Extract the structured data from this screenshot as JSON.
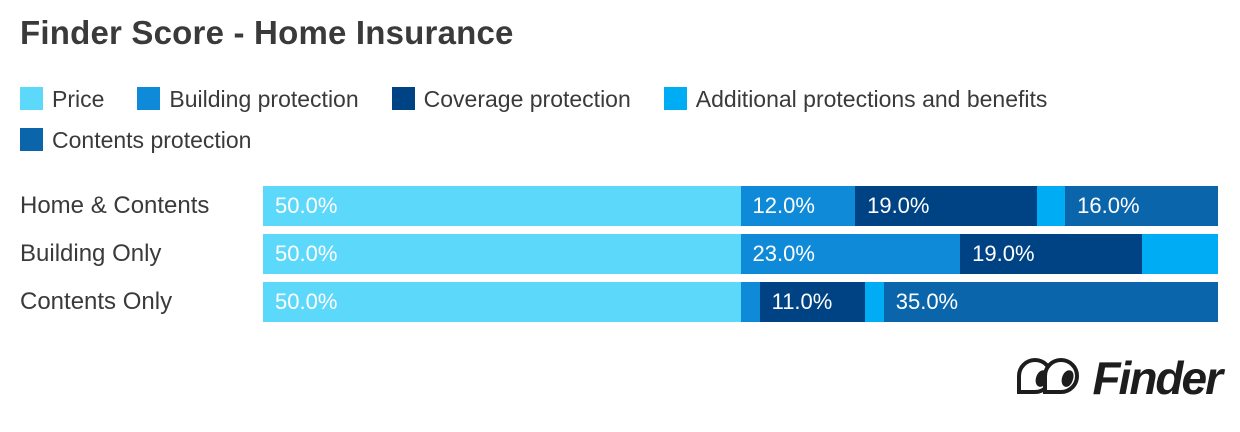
{
  "title": "Finder Score - Home Insurance",
  "legend": {
    "items": [
      {
        "id": "price",
        "label": "Price",
        "color": "#5CD9FA"
      },
      {
        "id": "building",
        "label": "Building protection",
        "color": "#0F8AD8"
      },
      {
        "id": "coverage",
        "label": "Coverage protection",
        "color": "#004384"
      },
      {
        "id": "additional",
        "label": "Additional protections and benefits",
        "color": "#00ADF5"
      },
      {
        "id": "contents",
        "label": "Contents protection",
        "color": "#0A65AB"
      }
    ]
  },
  "chart_data": {
    "type": "bar",
    "stacked": true,
    "orientation": "horizontal",
    "xlim": [
      0,
      100
    ],
    "value_suffix": "%",
    "grid": false,
    "legend_position": "top",
    "categories": [
      "Home & Contents",
      "Building Only",
      "Contents Only"
    ],
    "series": [
      {
        "id": "price",
        "name": "Price",
        "color": "#5CD9FA",
        "values": [
          50.0,
          50.0,
          50.0
        ]
      },
      {
        "id": "building",
        "name": "Building protection",
        "color": "#0F8AD8",
        "values": [
          12.0,
          23.0,
          2.0
        ]
      },
      {
        "id": "coverage",
        "name": "Coverage protection",
        "color": "#004384",
        "values": [
          19.0,
          19.0,
          11.0
        ]
      },
      {
        "id": "additional",
        "name": "Additional protections and benefits",
        "color": "#00ADF5",
        "values": [
          3.0,
          8.0,
          2.0
        ]
      },
      {
        "id": "contents",
        "name": "Contents protection",
        "color": "#0A65AB",
        "values": [
          16.0,
          0.0,
          35.0
        ]
      }
    ],
    "bar_labels": [
      [
        "50.0%",
        "12.0%",
        "19.0%",
        "",
        "16.0%"
      ],
      [
        "50.0%",
        "23.0%",
        "19.0%",
        "",
        ""
      ],
      [
        "50.0%",
        "",
        "11.0%",
        "",
        "35.0%"
      ]
    ]
  },
  "footer": {
    "brand": "Finder"
  },
  "colors": {
    "text": "#3A3A3A",
    "background": "#FFFFFF",
    "bar_label_text": "#FFFFFF",
    "logo": "#1D1D1D"
  }
}
